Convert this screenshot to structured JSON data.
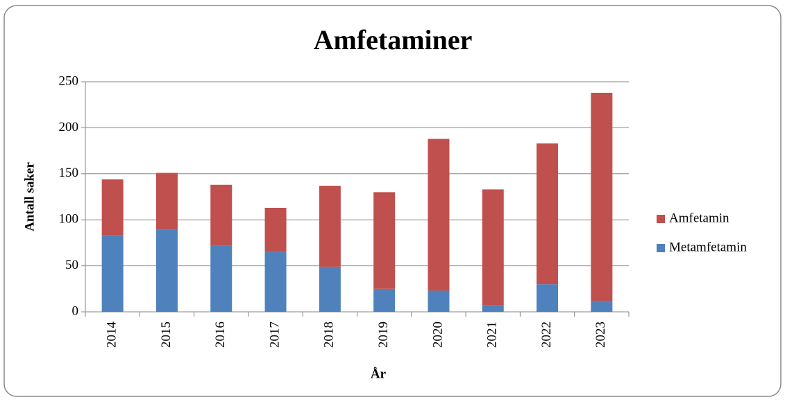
{
  "chart_data": {
    "type": "stacked_bar",
    "title": "Amfetaminer",
    "x_label": "År",
    "y_label": "Antall saker",
    "categories": [
      "2014",
      "2015",
      "2016",
      "2017",
      "2018",
      "2019",
      "2020",
      "2021",
      "2022",
      "2023"
    ],
    "series": [
      {
        "name": "Metamfetamin",
        "color": "#4f81bd",
        "values": [
          83,
          89,
          72,
          65,
          49,
          25,
          23,
          7,
          30,
          12
        ]
      },
      {
        "name": "Amfetamin",
        "color": "#c0504d",
        "values": [
          61,
          62,
          66,
          48,
          88,
          105,
          165,
          126,
          153,
          226
        ]
      }
    ],
    "ylim": [
      0,
      250
    ],
    "yticks": [
      0,
      50,
      100,
      150,
      200,
      250
    ],
    "grid": true,
    "legend": "right"
  }
}
